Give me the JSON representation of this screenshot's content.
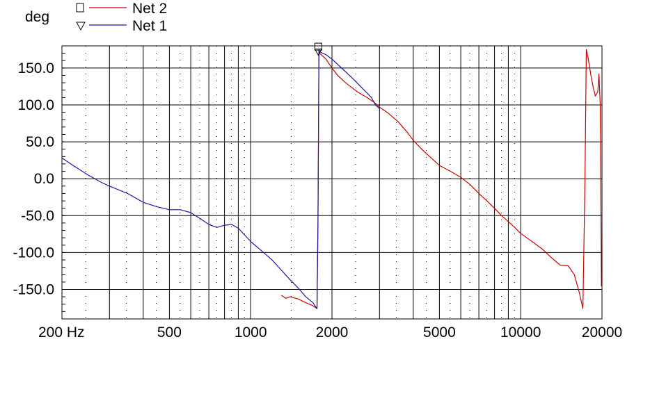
{
  "chart_data": {
    "type": "line",
    "ylabel": "deg",
    "x_scale": "log",
    "xlim": [
      200,
      20000
    ],
    "ylim": [
      -190,
      180
    ],
    "x_ticks": [
      {
        "value": 200,
        "label": "200 Hz"
      },
      {
        "value": 500,
        "label": "500"
      },
      {
        "value": 1000,
        "label": "1000"
      },
      {
        "value": 2000,
        "label": "2000"
      },
      {
        "value": 5000,
        "label": "5000"
      },
      {
        "value": 10000,
        "label": "10000"
      },
      {
        "value": 20000,
        "label": "20000"
      }
    ],
    "y_ticks": [
      {
        "value": 150,
        "label": "150.0"
      },
      {
        "value": 100,
        "label": "100.0"
      },
      {
        "value": 50,
        "label": "50.0"
      },
      {
        "value": 0,
        "label": "0.0"
      },
      {
        "value": -50,
        "label": "-50.0"
      },
      {
        "value": -100,
        "label": "-100.0"
      },
      {
        "value": -150,
        "label": "-150.0"
      }
    ],
    "grid": true,
    "legend": "top-left",
    "series": [
      {
        "name": "Net 2",
        "color": "#cc0000",
        "marker": "square",
        "marker_point": [
          1780,
          178
        ],
        "points": [
          [
            1300,
            -158
          ],
          [
            1350,
            -162
          ],
          [
            1400,
            -160
          ],
          [
            1500,
            -163
          ],
          [
            1600,
            -168
          ],
          [
            1700,
            -172
          ],
          [
            1760,
            -176
          ],
          [
            1775,
            -60
          ],
          [
            1790,
            175
          ],
          [
            1800,
            170
          ],
          [
            1900,
            162
          ],
          [
            2000,
            150
          ],
          [
            2100,
            140
          ],
          [
            2200,
            133
          ],
          [
            2300,
            127
          ],
          [
            2500,
            117
          ],
          [
            2700,
            110
          ],
          [
            2900,
            102
          ],
          [
            3000,
            97
          ],
          [
            3200,
            90
          ],
          [
            3500,
            78
          ],
          [
            3800,
            63
          ],
          [
            4000,
            52
          ],
          [
            4300,
            40
          ],
          [
            4600,
            30
          ],
          [
            5000,
            18
          ],
          [
            5500,
            10
          ],
          [
            6000,
            2
          ],
          [
            6500,
            -8
          ],
          [
            7000,
            -20
          ],
          [
            7500,
            -30
          ],
          [
            8000,
            -40
          ],
          [
            8500,
            -50
          ],
          [
            9000,
            -58
          ],
          [
            9500,
            -66
          ],
          [
            10000,
            -74
          ],
          [
            11000,
            -85
          ],
          [
            12000,
            -95
          ],
          [
            13000,
            -107
          ],
          [
            14000,
            -117
          ],
          [
            15000,
            -118
          ],
          [
            15800,
            -130
          ],
          [
            16500,
            -155
          ],
          [
            17000,
            -176
          ],
          [
            17300,
            0
          ],
          [
            17500,
            175
          ],
          [
            17800,
            162
          ],
          [
            18200,
            140
          ],
          [
            18600,
            122
          ],
          [
            18900,
            112
          ],
          [
            19300,
            118
          ],
          [
            19500,
            142
          ],
          [
            19700,
            100
          ],
          [
            19900,
            -145
          ],
          [
            20000,
            -120
          ]
        ]
      },
      {
        "name": "Net 1",
        "color": "#1a1aa6",
        "marker": "triangle",
        "marker_point": [
          1780,
          172
        ],
        "points": [
          [
            200,
            28
          ],
          [
            220,
            18
          ],
          [
            250,
            5
          ],
          [
            280,
            -5
          ],
          [
            300,
            -10
          ],
          [
            350,
            -20
          ],
          [
            400,
            -32
          ],
          [
            450,
            -38
          ],
          [
            500,
            -42
          ],
          [
            550,
            -42
          ],
          [
            600,
            -46
          ],
          [
            650,
            -54
          ],
          [
            700,
            -62
          ],
          [
            750,
            -66
          ],
          [
            800,
            -63
          ],
          [
            850,
            -62
          ],
          [
            900,
            -67
          ],
          [
            1000,
            -85
          ],
          [
            1100,
            -98
          ],
          [
            1200,
            -110
          ],
          [
            1300,
            -124
          ],
          [
            1400,
            -137
          ],
          [
            1500,
            -148
          ],
          [
            1600,
            -160
          ],
          [
            1700,
            -168
          ],
          [
            1760,
            -176
          ],
          [
            1775,
            -60
          ],
          [
            1790,
            175
          ],
          [
            1800,
            172
          ],
          [
            1900,
            168
          ],
          [
            2000,
            162
          ],
          [
            2200,
            148
          ],
          [
            2400,
            135
          ],
          [
            2600,
            122
          ],
          [
            2800,
            110
          ],
          [
            2900,
            100
          ],
          [
            3000,
            95
          ]
        ]
      }
    ]
  }
}
